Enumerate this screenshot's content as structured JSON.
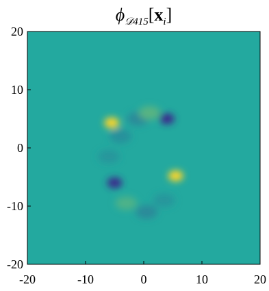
{
  "chart_data": {
    "type": "heatmap",
    "title": {
      "symbol": "ϕ",
      "subscript": "𝒟415",
      "open": "[",
      "argument": "x",
      "argument_subscript": "i",
      "close": "]"
    },
    "x": [
      -5.5,
      4.0,
      5.5,
      -5.0,
      -1.0,
      1.0,
      -4.0,
      -3.0,
      0.5,
      3.5,
      -6.0
    ],
    "y": [
      4.3,
      5.0,
      -4.8,
      -6.0,
      5.0,
      6.0,
      2.0,
      -9.5,
      -11.0,
      -9.0,
      -1.5
    ],
    "values": [
      1,
      -1,
      1,
      -1,
      -0.25,
      0.25,
      -0.2,
      0.2,
      -0.25,
      -0.15,
      -0.15
    ],
    "clim": [
      -1,
      1
    ],
    "colormap": [
      "#3a2b8c",
      "#23a99f",
      "#fbd52a"
    ],
    "xlim": [
      -20,
      20
    ],
    "ylim": [
      -20,
      20
    ],
    "xticks": [
      -20,
      -10,
      0,
      10,
      20
    ],
    "yticks": [
      -20,
      -10,
      0,
      10,
      20
    ]
  }
}
